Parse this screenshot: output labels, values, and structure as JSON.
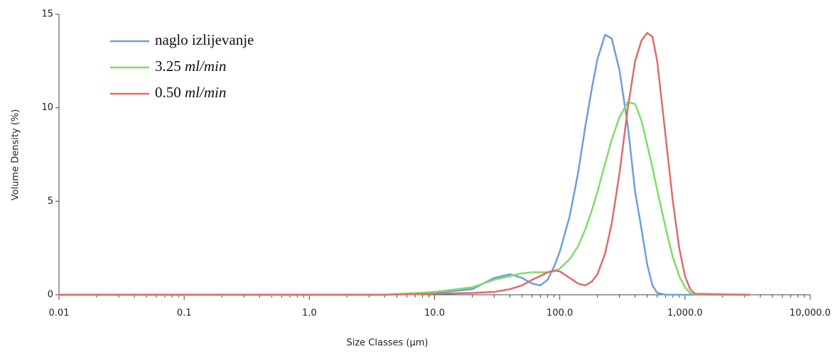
{
  "chart_data": {
    "type": "line",
    "x_label": "Size Classes (µm)",
    "y_label": "Volume Density (%)",
    "log_x": true,
    "xlim": [
      0.01,
      10000
    ],
    "xticks": [
      0.01,
      0.1,
      {
        "value": 1,
        "label": "1.0"
      },
      {
        "value": 10,
        "label": "10.0"
      },
      {
        "value": 100,
        "label": "100.0"
      },
      {
        "value": 1000,
        "label": "1,000.0"
      },
      {
        "value": 10000,
        "label": "10,000.0"
      }
    ],
    "ylim": [
      0,
      15
    ],
    "yticks": [
      0,
      5,
      10,
      15
    ],
    "legend": "top-left",
    "x": [
      0.01,
      4,
      10,
      20,
      30,
      40,
      50,
      60,
      70,
      80,
      90,
      100,
      120,
      140,
      160,
      180,
      200,
      230,
      260,
      300,
      350,
      400,
      450,
      500,
      550,
      600,
      700,
      800,
      900,
      1000,
      1100,
      1200,
      3300
    ],
    "series": [
      {
        "name": "naglo izlijevanje",
        "color": "#6a9fe0",
        "values": [
          0,
          0,
          0.1,
          0.3,
          0.9,
          1.1,
          0.9,
          0.6,
          0.5,
          0.8,
          1.5,
          2.3,
          4.2,
          6.5,
          9,
          11,
          12.6,
          13.9,
          13.7,
          12,
          9,
          5.5,
          3.5,
          1.6,
          0.5,
          0.1,
          0,
          0,
          0,
          0,
          0,
          0,
          0
        ]
      },
      {
        "name": "3.25 ml/min",
        "color": "#7fdc6a",
        "values": [
          0,
          0,
          0.15,
          0.4,
          0.8,
          1.0,
          1.15,
          1.2,
          1.2,
          1.2,
          1.25,
          1.4,
          1.9,
          2.6,
          3.5,
          4.5,
          5.5,
          7,
          8.3,
          9.5,
          10.3,
          10.2,
          9.3,
          8,
          6.8,
          5.6,
          3.6,
          2.0,
          1.0,
          0.4,
          0.1,
          0,
          0
        ]
      },
      {
        "name": "0.50 ml/min",
        "color": "#e06a6a",
        "values": [
          0,
          0,
          0.05,
          0.1,
          0.15,
          0.3,
          0.5,
          0.8,
          1.0,
          1.2,
          1.3,
          1.25,
          0.9,
          0.6,
          0.5,
          0.7,
          1.1,
          2.2,
          3.8,
          6.5,
          10,
          12.5,
          13.6,
          14,
          13.8,
          12.5,
          8.5,
          5,
          2.5,
          1.0,
          0.3,
          0.05,
          0
        ]
      }
    ]
  }
}
